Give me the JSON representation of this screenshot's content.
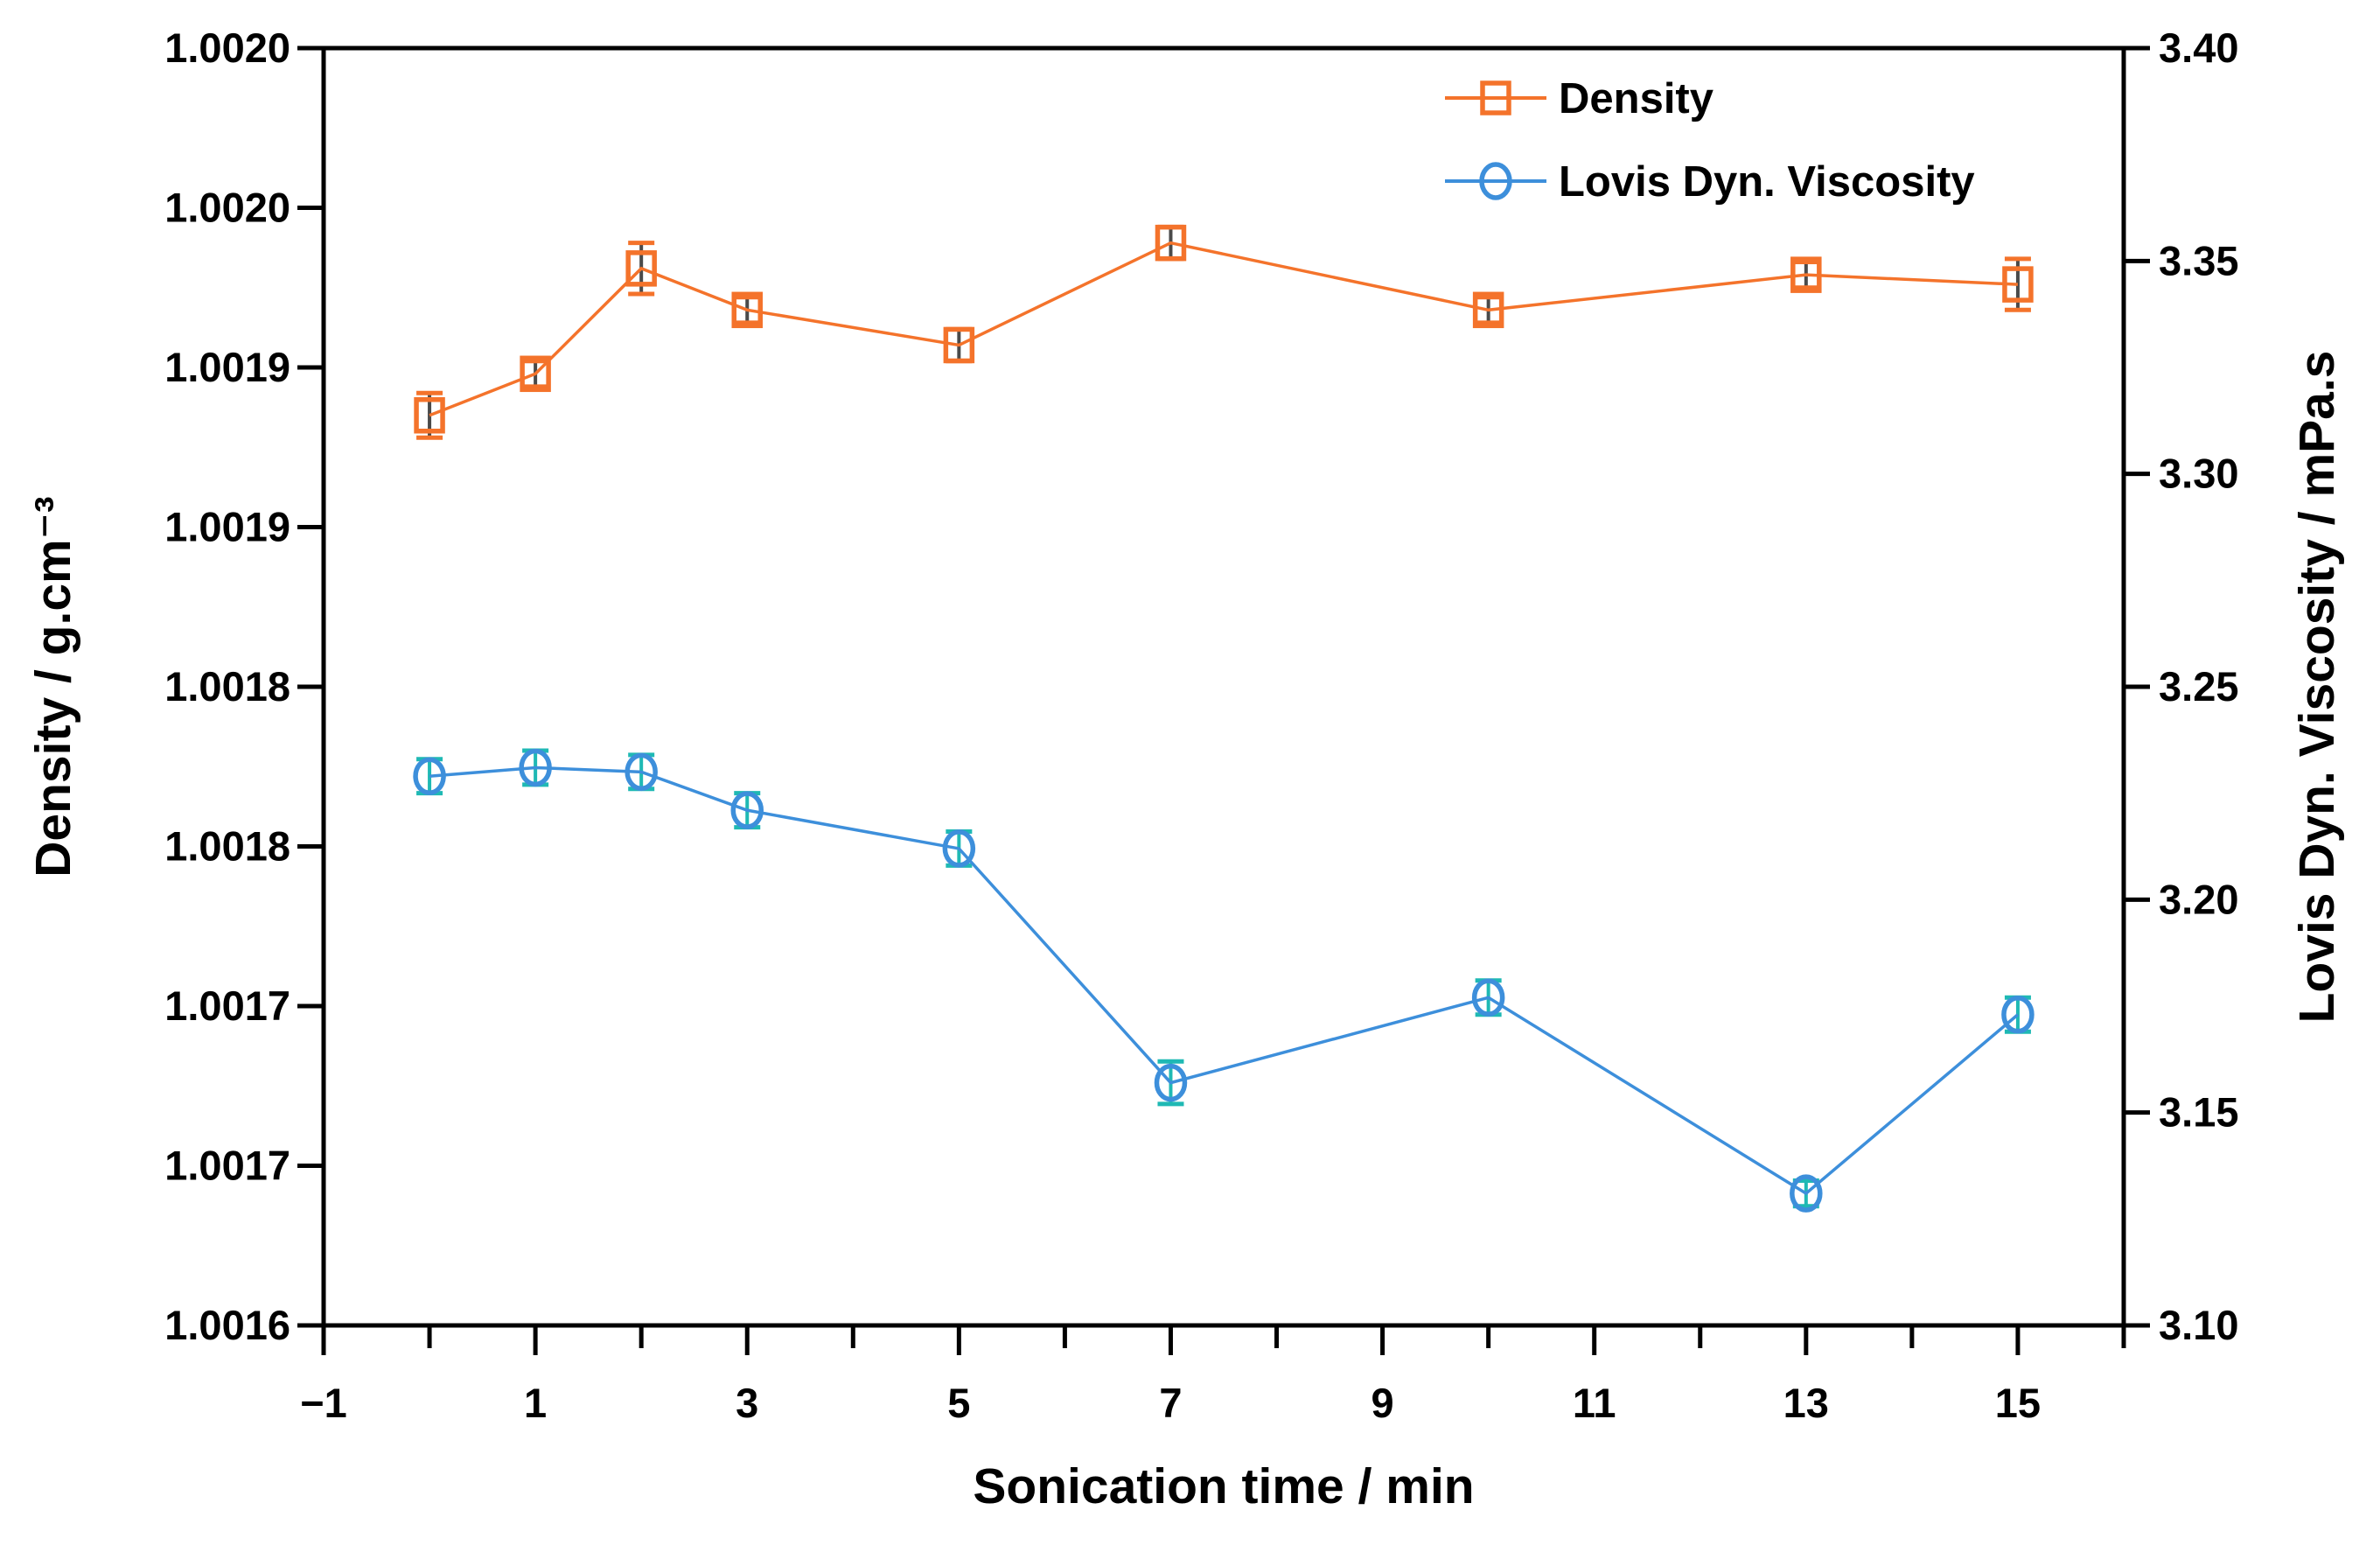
{
  "figure": {
    "background": "#ffffff",
    "frame_color": "#000000"
  },
  "chart_data": {
    "type": "line",
    "title": "",
    "xlabel": "Sonication time / min",
    "ylabel_left": "Density / g.cm⁻³",
    "ylabel_right": "Lovis Dyn. Viscosity / mPa.s",
    "grid": false,
    "legend_position": "top-right-inside",
    "x_range": [
      -1,
      16
    ],
    "x_major_ticks": [
      -1,
      1,
      3,
      5,
      7,
      9,
      11,
      13,
      15
    ],
    "x_major_tick_labels": [
      "−1",
      "1",
      "3",
      "5",
      "7",
      "9",
      "11",
      "13",
      "15"
    ],
    "x_minor_ticks": [
      0,
      2,
      4,
      6,
      8,
      10,
      12,
      14,
      16
    ],
    "y_left_range": [
      1.0016,
      1.002
    ],
    "y_left_ticks": [
      1.002,
      1.00195,
      1.0019,
      1.00185,
      1.0018,
      1.00175,
      1.0017,
      1.00165,
      1.0016
    ],
    "y_left_tick_labels": [
      "1.0020",
      "1.0020",
      "1.0019",
      "1.0019",
      "1.0018",
      "1.0018",
      "1.0017",
      "1.0017",
      "1.0016"
    ],
    "y_right_range": [
      3.1,
      3.4
    ],
    "y_right_ticks": [
      3.4,
      3.35,
      3.3,
      3.25,
      3.2,
      3.15,
      3.1
    ],
    "y_right_tick_labels": [
      "3.40",
      "3.35",
      "3.30",
      "3.25",
      "3.20",
      "3.15",
      "3.10"
    ],
    "x_shared": [
      0,
      1,
      2,
      3,
      5,
      7,
      10,
      13,
      15
    ],
    "series": [
      {
        "name": "Density",
        "axis": "left",
        "marker": "square",
        "color": "#F4732B",
        "err_line_color": "#4a4a4a",
        "err_cap_color": "#F4732B",
        "x": [
          0,
          1,
          2,
          3,
          5,
          7,
          10,
          13,
          15
        ],
        "y": [
          1.001885,
          1.001898,
          1.001931,
          1.001918,
          1.001907,
          1.001939,
          1.001918,
          1.001929,
          1.001926
        ],
        "yerr": [
          7e-06,
          4e-06,
          8e-06,
          4e-06,
          5e-06,
          5e-06,
          4e-06,
          4e-06,
          8e-06
        ]
      },
      {
        "name": "Lovis Dyn. Viscosity",
        "axis": "right",
        "marker": "circle",
        "color": "#3D8FDB",
        "err_line_color": "#1FB9B4",
        "err_cap_color": "#1FB9B4",
        "x": [
          0,
          1,
          2,
          3,
          5,
          7,
          10,
          13,
          15
        ],
        "y": [
          3.229,
          3.231,
          3.23,
          3.221,
          3.212,
          3.157,
          3.177,
          3.131,
          3.173
        ],
        "yerr": [
          0.004,
          0.004,
          0.004,
          0.004,
          0.004,
          0.005,
          0.004,
          0.003,
          0.004
        ]
      }
    ],
    "legend": {
      "items": [
        "Density",
        "Lovis Dyn. Viscosity"
      ]
    }
  }
}
